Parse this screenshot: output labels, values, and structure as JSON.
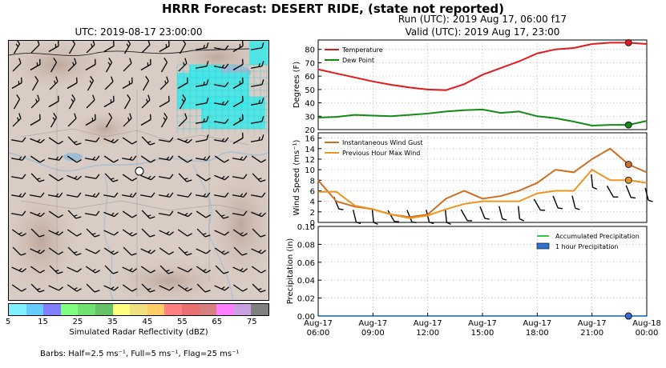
{
  "header": {
    "title": "HRRR Forecast: DESERT RIDE, (state not reported)",
    "map_title": "UTC: 2019-08-17 23:00:00",
    "run": "Run (UTC): 2019 Aug 17, 06:00 f17",
    "valid": "Valid (UTC): 2019 Aug 17, 23:00"
  },
  "colorbar": {
    "label": "Simulated Radar Reflectivity (dBZ)",
    "tick_labels": [
      "5",
      "15",
      "25",
      "35",
      "45",
      "55",
      "65",
      "75"
    ],
    "colors": [
      "#7ff0ff",
      "#66ccff",
      "#8080ff",
      "#80ff80",
      "#70e070",
      "#66c266",
      "#ffff80",
      "#f0e080",
      "#ffcc66",
      "#ff8080",
      "#e87070",
      "#d88080",
      "#ff80ff",
      "#c8a0e0",
      "#808080"
    ]
  },
  "barbs_note": "Barbs: Half=2.5 ms⁻¹, Full=5 ms⁻¹, Flag=25 ms⁻¹",
  "colors": {
    "temperature": "#e31a1c",
    "dew_point": "#138a13",
    "gust": "#cd6f23",
    "max_wind": "#ee9420",
    "precip": "#2ecc40",
    "precip_bar": "#3070d0",
    "radar_echo": "#40e8e8"
  },
  "chart_data": [
    {
      "type": "line",
      "panel": "temperature",
      "ylabel": "Degrees (F)",
      "ylim": [
        20,
        87
      ],
      "yticks": [
        20,
        30,
        40,
        50,
        60,
        70,
        80
      ],
      "grid": true,
      "legend_position": "upper-left",
      "x": [
        6,
        7,
        8,
        9,
        10,
        11,
        12,
        13,
        14,
        15,
        16,
        17,
        18,
        19,
        20,
        21,
        22,
        23,
        24
      ],
      "series": [
        {
          "name": "Temperature",
          "values": [
            65,
            62,
            59,
            56,
            53.5,
            51.5,
            50,
            49.5,
            54,
            61,
            66,
            71,
            77,
            80,
            81,
            84,
            85,
            85,
            84
          ]
        },
        {
          "name": "Dew Point",
          "values": [
            29,
            29.5,
            31,
            30.5,
            30,
            31,
            32,
            33.5,
            34.5,
            35,
            32.5,
            33.5,
            30,
            28.5,
            26,
            23,
            23.5,
            23.5,
            26.5
          ]
        }
      ],
      "highlight_hour": 23
    },
    {
      "type": "line",
      "panel": "wind",
      "ylabel": "Wind Speed (ms⁻¹)",
      "ylim": [
        0,
        17
      ],
      "yticks": [
        0,
        2,
        4,
        6,
        8,
        10,
        12,
        14,
        16
      ],
      "grid": true,
      "legend_position": "upper-left",
      "x": [
        6,
        7,
        8,
        9,
        10,
        11,
        12,
        13,
        14,
        15,
        16,
        17,
        18,
        19,
        20,
        21,
        22,
        23,
        24
      ],
      "series": [
        {
          "name": "Instantaneous Wind Gust",
          "values": [
            8,
            4,
            3,
            2.5,
            1.5,
            1,
            1.5,
            4.5,
            6,
            4.5,
            5,
            6,
            7.5,
            10,
            9.5,
            12,
            14,
            11,
            9.5
          ]
        },
        {
          "name": "Previous Hour Max Wind",
          "values": [
            5.8,
            5.8,
            3.2,
            2.5,
            1.5,
            0.8,
            1.3,
            2.5,
            3.5,
            4,
            4,
            4,
            5.5,
            6,
            6,
            10,
            8,
            8,
            7.5
          ]
        }
      ],
      "highlight_hour": 23
    },
    {
      "type": "line",
      "panel": "precipitation",
      "ylabel": "Precipitation (in)",
      "ylim": [
        0,
        0.1
      ],
      "yticks": [
        "0.00",
        "0.02",
        "0.04",
        "0.06",
        "0.08",
        "0.10"
      ],
      "grid": true,
      "legend_position": "upper-right",
      "x": [
        6,
        7,
        8,
        9,
        10,
        11,
        12,
        13,
        14,
        15,
        16,
        17,
        18,
        19,
        20,
        21,
        22,
        23,
        24
      ],
      "series": [
        {
          "name": "Accumulated Precipitation",
          "values": [
            0,
            0,
            0,
            0,
            0,
            0,
            0,
            0,
            0,
            0,
            0,
            0,
            0,
            0,
            0,
            0,
            0,
            0,
            0
          ]
        },
        {
          "name": "1 hour Precipitation",
          "values": [
            0,
            0,
            0,
            0,
            0,
            0,
            0,
            0,
            0,
            0,
            0,
            0,
            0,
            0,
            0,
            0,
            0,
            0,
            0
          ]
        }
      ],
      "highlight_hour": 23,
      "xticks": [
        {
          "hour": 6,
          "date": "Aug-17",
          "time": "06:00"
        },
        {
          "hour": 9,
          "date": "Aug-17",
          "time": "09:00"
        },
        {
          "hour": 12,
          "date": "Aug-17",
          "time": "12:00"
        },
        {
          "hour": 15,
          "date": "Aug-17",
          "time": "15:00"
        },
        {
          "hour": 18,
          "date": "Aug-17",
          "time": "18:00"
        },
        {
          "hour": 21,
          "date": "Aug-17",
          "time": "21:00"
        },
        {
          "hour": 24,
          "date": "Aug-18",
          "time": "00:00"
        }
      ]
    }
  ]
}
